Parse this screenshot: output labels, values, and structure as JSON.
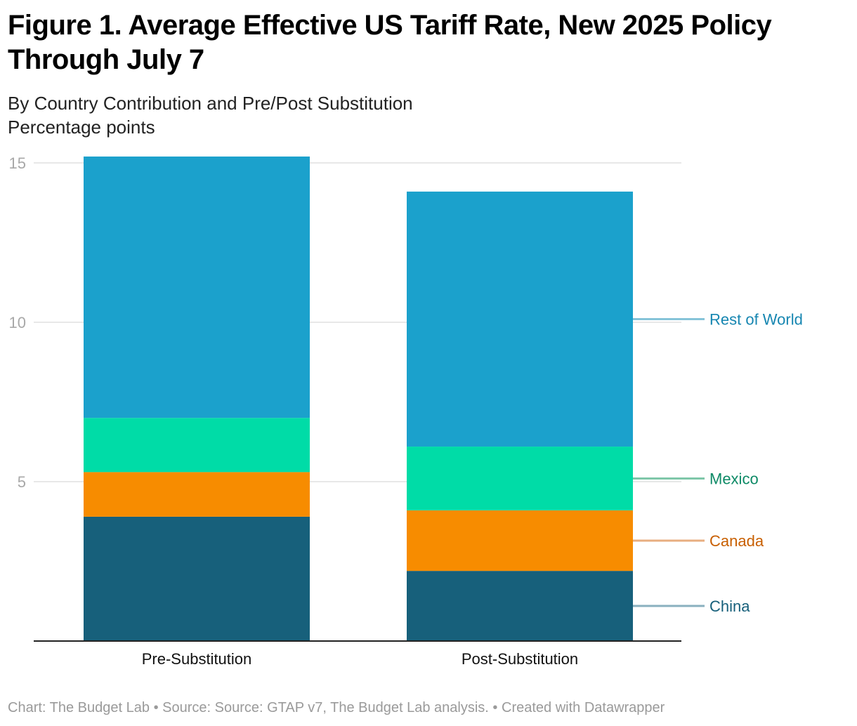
{
  "title": "Figure 1. Average Effective US Tariff Rate, New 2025 Policy Through July 7",
  "subtitle": "By Country Contribution and Pre/Post Substitution",
  "unit_note": "Percentage points",
  "footer": {
    "credit": "Chart: The Budget Lab",
    "source": "Source: Source: GTAP v7, The Budget Lab analysis.",
    "created": "Created with Datawrapper",
    "separator": "•"
  },
  "chart_data": {
    "type": "bar",
    "stacked": true,
    "categories": [
      "Pre-Substitution",
      "Post-Substitution"
    ],
    "series": [
      {
        "name": "China",
        "values": [
          3.9,
          2.2
        ],
        "color": "#17607b",
        "label_color": "#17607b",
        "connector_color": "#8ab0bf"
      },
      {
        "name": "Canada",
        "values": [
          1.4,
          1.9
        ],
        "color": "#f78c00",
        "label_color": "#c85f00",
        "connector_color": "#e8ae80"
      },
      {
        "name": "Mexico",
        "values": [
          1.7,
          2.0
        ],
        "color": "#00dca7",
        "label_color": "#0e8a66",
        "connector_color": "#7fc7a9"
      },
      {
        "name": "Rest of World",
        "values": [
          8.2,
          8.0
        ],
        "color": "#1ba1cc",
        "label_color": "#1686b1",
        "connector_color": "#86c4d9"
      }
    ],
    "y_ticks": [
      5,
      10,
      15
    ],
    "ylim": [
      0,
      15
    ],
    "grid": true,
    "legend": "direct labels right of last bar",
    "xlabel": "",
    "ylabel": ""
  }
}
